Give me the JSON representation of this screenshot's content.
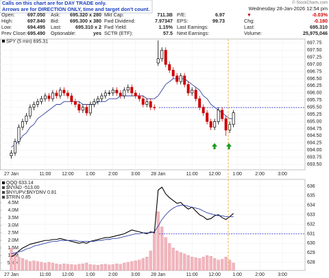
{
  "annotation": [
    "Calls on this chart are for DAY TRADE only.",
    "Arrows are for DIRECTION ONLY, time and target don't count."
  ],
  "watermark": "© StockCharts.com",
  "datetime": "Wednesday 28-Jan-2026 12:54 pm",
  "quote": [
    [
      {
        "label": "Open:",
        "value": "697.050"
      },
      {
        "label": "Ask:",
        "value": "695.320 x 280"
      },
      {
        "label": "Mkt Cap:",
        "value": "711.3B"
      },
      {
        "label": "P/E:",
        "value": "6.97"
      },
      {
        "value": "-0.03%"
      }
    ],
    [
      {
        "label": "High:",
        "value": "697.840"
      },
      {
        "label": "Bid:",
        "value": "695.300 x 380"
      },
      {
        "label": "Fwd Dividend:",
        "value": "7.97347"
      },
      {
        "label": "EPS:",
        "value": "99.73"
      },
      {
        "label": "Chg:",
        "value": "-0.180"
      }
    ],
    [
      {
        "label": "Low:",
        "value": "694.495"
      },
      {
        "label": "Last:",
        "value": "695.310 x 2"
      },
      {
        "label": "Fwd Yield:",
        "value": "1.15%"
      },
      {
        "label": "Last Earnings:"
      },
      {
        "label": "Last:",
        "value": "695.310"
      }
    ],
    [
      {
        "label": "Prev Close:",
        "value": "695.490"
      },
      {
        "label": "Optionable:",
        "value": "yes"
      },
      {
        "label": "SCTR (ETF):",
        "value": "57.5"
      },
      {
        "label": "Next Earnings:"
      },
      {
        "label": "Volume:",
        "value": "25,975,046"
      }
    ]
  ],
  "chart_data": [
    {
      "type": "candlestick",
      "legend": "SPY (5 min) 695.31",
      "up_color": "#000000",
      "down_color": "#cc0000",
      "grid": true,
      "xlim": [
        -3,
        78
      ],
      "xticks": [
        {
          "value": 0,
          "label": "27 Jan"
        },
        {
          "value": 9,
          "label": "11:00"
        },
        {
          "value": 15,
          "label": "12:00"
        },
        {
          "value": 21,
          "label": "1:00"
        },
        {
          "value": 27,
          "label": "2:00"
        },
        {
          "value": 33,
          "label": "3:00"
        },
        {
          "value": 39,
          "label": "28 Jan"
        },
        {
          "value": 48,
          "label": "11:00"
        },
        {
          "value": 54,
          "label": "12:00"
        },
        {
          "value": 60,
          "label": "1:00"
        },
        {
          "value": 66,
          "label": "2:00"
        },
        {
          "value": 72,
          "label": "3:00"
        }
      ],
      "ylim": [
        693.31,
        697.89
      ],
      "yticks": [
        {
          "value": 693.5,
          "label": "693.50"
        },
        {
          "value": 693.75,
          "label": "693.75"
        },
        {
          "value": 694,
          "label": "694.00"
        },
        {
          "value": 694.25,
          "label": "694.25"
        },
        {
          "value": 694.5,
          "label": "694.50"
        },
        {
          "value": 694.75,
          "label": "694.75"
        },
        {
          "value": 695,
          "label": "695.00"
        },
        {
          "value": 695.25,
          "label": "695.25"
        },
        {
          "value": 695.5,
          "label": "695.50"
        },
        {
          "value": 695.75,
          "label": "695.75"
        },
        {
          "value": 696,
          "label": "696.00"
        },
        {
          "value": 696.25,
          "label": "696.25"
        },
        {
          "value": 696.5,
          "label": "696.50"
        },
        {
          "value": 696.75,
          "label": "696.75"
        },
        {
          "value": 697,
          "label": "697.00"
        },
        {
          "value": 697.25,
          "label": "697.25"
        },
        {
          "value": 697.5,
          "label": "697.50"
        },
        {
          "value": 697.75,
          "label": "697.75"
        }
      ],
      "prev_close": 695.49,
      "prev_close_color": "#3333cc",
      "x": [
        0,
        1,
        2,
        3,
        4,
        5,
        6,
        7,
        8,
        9,
        10,
        11,
        12,
        13,
        14,
        15,
        16,
        17,
        18,
        19,
        20,
        21,
        22,
        23,
        24,
        25,
        26,
        27,
        28,
        29,
        30,
        31,
        32,
        33,
        34,
        35,
        36,
        37,
        38,
        39,
        40,
        41,
        42,
        43,
        44,
        45,
        46,
        47,
        48,
        49,
        50,
        51,
        52,
        53,
        54,
        55,
        56,
        57,
        58,
        59
      ],
      "open": [
        693.8,
        693.9,
        694.3,
        694.8,
        695.0,
        695.2,
        695.5,
        695.6,
        695.7,
        695.8,
        695.9,
        695.8,
        696.0,
        695.9,
        696.1,
        696.0,
        695.9,
        695.7,
        695.6,
        695.4,
        695.5,
        695.3,
        695.6,
        695.7,
        695.8,
        695.9,
        696.0,
        696.0,
        696.1,
        696.0,
        695.9,
        696.1,
        696.2,
        696.0,
        695.9,
        695.8,
        695.6,
        695.7,
        695.5,
        697.05,
        697.2,
        697.5,
        697.0,
        696.8,
        696.6,
        696.4,
        696.6,
        696.3,
        696.0,
        696.1,
        695.8,
        695.5,
        695.3,
        695.0,
        694.8,
        695.0,
        695.4,
        695.1,
        694.7,
        694.9
      ],
      "high": [
        694.0,
        694.4,
        694.9,
        695.1,
        695.3,
        695.6,
        695.7,
        695.8,
        695.9,
        696.0,
        696.0,
        696.1,
        696.1,
        696.2,
        696.2,
        696.1,
        696.0,
        695.8,
        695.7,
        695.6,
        695.6,
        695.7,
        695.8,
        695.9,
        696.0,
        696.1,
        696.1,
        696.2,
        696.2,
        696.1,
        696.2,
        696.3,
        696.3,
        696.1,
        696.0,
        695.9,
        695.8,
        695.8,
        695.6,
        697.84,
        697.6,
        697.6,
        697.1,
        696.9,
        696.7,
        696.7,
        696.7,
        696.4,
        696.2,
        696.2,
        695.9,
        695.6,
        695.4,
        695.1,
        695.1,
        695.5,
        695.5,
        695.2,
        695.0,
        695.4
      ],
      "low": [
        693.7,
        693.8,
        694.2,
        694.7,
        694.9,
        695.1,
        695.4,
        695.5,
        695.6,
        695.7,
        695.7,
        695.7,
        695.8,
        695.8,
        695.9,
        695.8,
        695.6,
        695.5,
        695.3,
        695.3,
        695.2,
        695.2,
        695.5,
        695.6,
        695.7,
        695.8,
        695.9,
        695.9,
        695.9,
        695.8,
        695.8,
        696.0,
        695.9,
        695.8,
        695.7,
        695.5,
        695.5,
        695.4,
        695.39,
        696.95,
        697.1,
        696.9,
        696.7,
        696.5,
        696.3,
        696.3,
        696.2,
        695.9,
        695.9,
        695.7,
        695.4,
        695.2,
        694.9,
        694.7,
        694.7,
        694.9,
        695.0,
        694.495,
        694.6,
        694.8
      ],
      "close": [
        693.9,
        694.3,
        694.8,
        695.0,
        695.2,
        695.5,
        695.6,
        695.7,
        695.8,
        695.9,
        695.8,
        696.0,
        695.9,
        696.1,
        696.0,
        695.9,
        695.7,
        695.6,
        695.4,
        695.5,
        695.3,
        695.6,
        695.7,
        695.8,
        695.9,
        696.0,
        696.0,
        696.1,
        696.0,
        695.9,
        696.1,
        696.2,
        696.0,
        695.9,
        695.8,
        695.6,
        695.7,
        695.5,
        695.49,
        697.2,
        697.5,
        697.0,
        696.8,
        696.6,
        696.4,
        696.6,
        696.3,
        696.0,
        696.1,
        695.8,
        695.5,
        695.3,
        695.0,
        694.8,
        695.0,
        695.4,
        695.1,
        694.7,
        694.9,
        695.31
      ],
      "ma": {
        "color": "#2f3f9f",
        "values": [
          694.1,
          694.2,
          694.3,
          694.5,
          694.6,
          694.8,
          694.9,
          695.1,
          695.2,
          695.3,
          695.4,
          695.5,
          695.6,
          695.6,
          695.7,
          695.7,
          695.7,
          695.7,
          695.7,
          695.6,
          695.6,
          695.6,
          695.6,
          695.7,
          695.7,
          695.7,
          695.8,
          695.8,
          695.8,
          695.9,
          695.9,
          695.9,
          695.9,
          695.9,
          695.9,
          695.9,
          695.8,
          695.8,
          695.8,
          695.9,
          696.1,
          696.3,
          696.4,
          696.5,
          696.5,
          696.5,
          696.5,
          696.4,
          696.3,
          696.2,
          696.1,
          695.9,
          695.8,
          695.6,
          695.5,
          695.4,
          695.3,
          695.2,
          695.1,
          695.1
        ]
      }
    },
    {
      "type": "combo",
      "legend": [
        "QQQ 633.14",
        "$NYAD -513.00",
        "$NYUPV:$NYDNV 0.81",
        "$TRIN 0.85"
      ],
      "grid": true,
      "xlim": [
        -3,
        78
      ],
      "xticks": [
        {
          "value": 0,
          "label": "27 Jan"
        },
        {
          "value": 9,
          "label": "11:00"
        },
        {
          "value": 15,
          "label": "12:00"
        },
        {
          "value": 21,
          "label": "1:00"
        },
        {
          "value": 27,
          "label": "2:00"
        },
        {
          "value": 33,
          "label": "3:00"
        },
        {
          "value": 39,
          "label": "28 Jan"
        },
        {
          "value": 48,
          "label": "11:00"
        },
        {
          "value": 54,
          "label": "12:00"
        },
        {
          "value": 60,
          "label": "1:00"
        },
        {
          "value": 66,
          "label": "2:00"
        },
        {
          "value": 72,
          "label": "3:00"
        }
      ],
      "ylim": [
        0,
        6050000
      ],
      "yticks": [
        {
          "value": 500000,
          "label": "500K"
        },
        {
          "value": 1000000,
          "label": "1.0M"
        },
        {
          "value": 1500000,
          "label": "1.5M"
        },
        {
          "value": 2000000,
          "label": "2.0M"
        },
        {
          "value": 2500000,
          "label": "2.5M"
        },
        {
          "value": 3000000,
          "label": "3.0M"
        },
        {
          "value": 3500000,
          "label": "3.5M"
        },
        {
          "value": 4000000,
          "label": "4.0M"
        },
        {
          "value": 4500000,
          "label": "4.5M"
        }
      ],
      "y2lim": [
        627.14,
        636.72
      ],
      "y2ticks": [
        628,
        629,
        630,
        631,
        632,
        633,
        634,
        635,
        636
      ],
      "prev_close": 631.0,
      "prev_close_color": "#3333cc",
      "x": [
        0,
        1,
        2,
        3,
        4,
        5,
        6,
        7,
        8,
        9,
        10,
        11,
        12,
        13,
        14,
        15,
        16,
        17,
        18,
        19,
        20,
        21,
        22,
        23,
        24,
        25,
        26,
        27,
        28,
        29,
        30,
        31,
        32,
        33,
        34,
        35,
        36,
        37,
        38,
        39,
        40,
        41,
        42,
        43,
        44,
        45,
        46,
        47,
        48,
        49,
        50,
        51,
        52,
        53,
        54,
        55,
        56,
        57,
        58,
        59
      ],
      "series": [
        {
          "type": "bar",
          "color": "#f2b5bd",
          "values": [
            1500000,
            1100000,
            900000,
            800000,
            700000,
            600000,
            650000,
            600000,
            550000,
            500000,
            550000,
            500000,
            450000,
            400000,
            450000,
            420000,
            400000,
            380000,
            420000,
            450000,
            500000,
            400000,
            380000,
            360000,
            400000,
            420000,
            380000,
            400000,
            450000,
            420000,
            500000,
            550000,
            600000,
            650000,
            700000,
            800000,
            900000,
            1300000,
            2600000,
            3900000,
            2900000,
            2200000,
            1800000,
            1500000,
            1300000,
            1200000,
            1100000,
            1000000,
            900000,
            850000,
            800000,
            900000,
            1000000,
            950000,
            800000,
            700000,
            750000,
            900000,
            700000,
            500000
          ]
        },
        {
          "type": "line",
          "axis": "y2",
          "color": "#000000",
          "values": [
            628.6,
            628.8,
            629.2,
            629.5,
            629.7,
            629.9,
            630.0,
            630.1,
            630.2,
            630.3,
            630.3,
            630.4,
            630.4,
            630.5,
            630.4,
            630.3,
            630.2,
            630.1,
            630.0,
            630.1,
            630.0,
            630.2,
            630.3,
            630.4,
            630.5,
            630.6,
            630.6,
            630.7,
            630.8,
            630.9,
            631.0,
            631.2,
            631.4,
            631.3,
            631.2,
            631.1,
            631.0,
            631.2,
            631.1,
            635.6,
            635.9,
            635.2,
            634.8,
            634.5,
            634.2,
            634.3,
            633.9,
            633.6,
            633.8,
            633.4,
            633.0,
            632.8,
            632.5,
            632.6,
            632.9,
            633.0,
            632.7,
            632.5,
            632.8,
            633.14
          ]
        },
        {
          "type": "line",
          "axis": "y2",
          "color": "#2f3f9f",
          "values": [
            628.9,
            629.0,
            629.1,
            629.2,
            629.4,
            629.5,
            629.7,
            629.8,
            629.9,
            630.0,
            630.1,
            630.2,
            630.2,
            630.3,
            630.3,
            630.3,
            630.3,
            630.3,
            630.2,
            630.2,
            630.2,
            630.2,
            630.2,
            630.3,
            630.3,
            630.4,
            630.4,
            630.5,
            630.5,
            630.6,
            630.7,
            630.8,
            630.9,
            631.0,
            631.0,
            631.1,
            631.1,
            631.1,
            631.2,
            631.8,
            632.5,
            633.0,
            633.4,
            633.7,
            633.9,
            634.0,
            634.0,
            633.9,
            633.8,
            633.7,
            633.6,
            633.4,
            633.2,
            633.1,
            633.0,
            632.9,
            632.9,
            632.8,
            632.8,
            632.8
          ]
        }
      ]
    }
  ]
}
